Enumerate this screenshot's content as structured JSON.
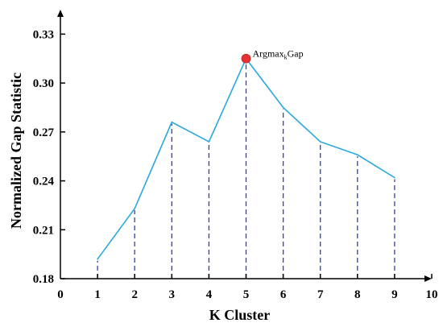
{
  "chart_data": {
    "type": "line",
    "xlabel": "K Cluster",
    "ylabel": "Normalized Gap Statistic",
    "xlim": [
      0,
      10
    ],
    "ylim": [
      0.18,
      0.345
    ],
    "x_ticks": [
      "0",
      "1",
      "2",
      "3",
      "4",
      "5",
      "6",
      "7",
      "8",
      "9",
      "10"
    ],
    "y_ticks": [
      "0.18",
      "0.21",
      "0.24",
      "0.27",
      "0.30",
      "0.33"
    ],
    "series": [
      {
        "x": [
          1,
          2,
          3,
          4,
          5,
          6,
          7,
          8,
          9
        ],
        "values": [
          0.192,
          0.223,
          0.276,
          0.264,
          0.315,
          0.285,
          0.264,
          0.256,
          0.242
        ]
      }
    ],
    "drop_lines": true,
    "highlight": {
      "x": 5,
      "y": 0.315,
      "label_main": "Argmax",
      "label_sub": "k",
      "label_tail": "Gap"
    },
    "colors": {
      "line": "#29a8e0",
      "drop_line": "#2a3fbf",
      "marker": "#e53333",
      "axis": "#000000"
    },
    "grid": false
  }
}
